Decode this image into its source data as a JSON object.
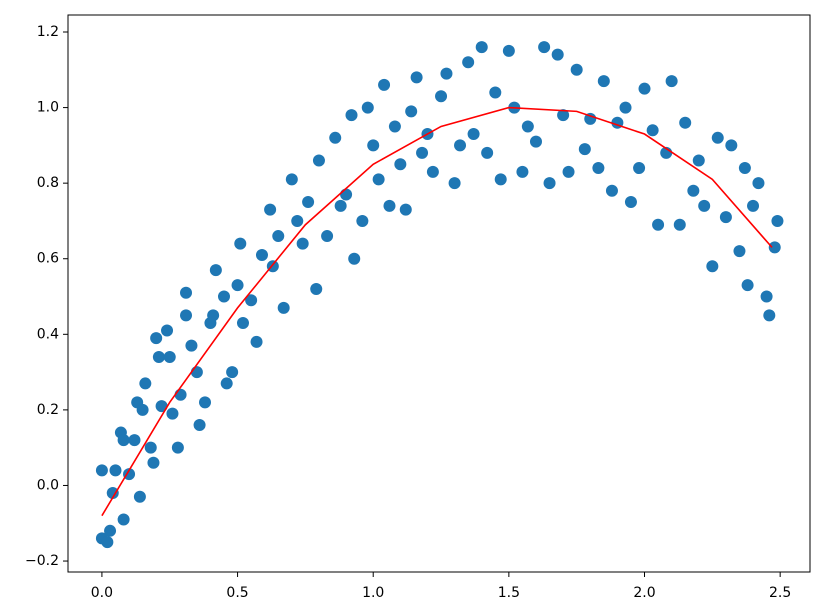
{
  "chart_data": {
    "type": "scatter",
    "xlim": [
      -0.125,
      2.61
    ],
    "ylim": [
      -0.229,
      1.245
    ],
    "xticks": [
      {
        "value": 0,
        "label": "0.0"
      },
      0.5,
      {
        "value": 1,
        "label": "1.0"
      },
      1.5,
      {
        "value": 2,
        "label": "2.0"
      },
      2.5
    ],
    "yticks": [
      {
        "value": -0.2,
        "label": "−0.2"
      },
      {
        "value": 0,
        "label": "0.0"
      },
      0.2,
      0.4,
      0.6,
      0.8,
      {
        "value": 1,
        "label": "1.0"
      },
      1.2
    ],
    "series": [
      {
        "type": "scatter",
        "color": "#1f77b4",
        "x": [
          0.0,
          0.02,
          0.03,
          0.0,
          0.05,
          0.04,
          0.07,
          0.08,
          0.08,
          0.1,
          0.12,
          0.13,
          0.14,
          0.15,
          0.16,
          0.18,
          0.19,
          0.2,
          0.21,
          0.22,
          0.24,
          0.25,
          0.26,
          0.28,
          0.29,
          0.31,
          0.31,
          0.33,
          0.35,
          0.36,
          0.38,
          0.4,
          0.41,
          0.42,
          0.45,
          0.46,
          0.48,
          0.5,
          0.51,
          0.52,
          0.55,
          0.57,
          0.59,
          0.62,
          0.63,
          0.65,
          0.67,
          0.7,
          0.72,
          0.74,
          0.76,
          0.79,
          0.8,
          0.83,
          0.86,
          0.88,
          0.9,
          0.92,
          0.93,
          0.96,
          0.98,
          1.0,
          1.02,
          1.04,
          1.06,
          1.08,
          1.1,
          1.12,
          1.14,
          1.16,
          1.18,
          1.2,
          1.22,
          1.25,
          1.27,
          1.3,
          1.32,
          1.35,
          1.37,
          1.4,
          1.42,
          1.45,
          1.47,
          1.5,
          1.52,
          1.55,
          1.57,
          1.6,
          1.63,
          1.65,
          1.68,
          1.7,
          1.72,
          1.75,
          1.78,
          1.8,
          1.83,
          1.85,
          1.88,
          1.9,
          1.93,
          1.95,
          1.98,
          2.0,
          2.03,
          2.05,
          2.08,
          2.1,
          2.13,
          2.15,
          2.18,
          2.2,
          2.22,
          2.25,
          2.27,
          2.3,
          2.32,
          2.35,
          2.37,
          2.38,
          2.4,
          2.42,
          2.45,
          2.46,
          2.48,
          2.49
        ],
        "values": [
          -0.14,
          -0.15,
          -0.12,
          0.04,
          0.04,
          -0.02,
          0.14,
          0.12,
          -0.09,
          0.03,
          0.12,
          0.22,
          -0.03,
          0.2,
          0.27,
          0.1,
          0.06,
          0.39,
          0.34,
          0.21,
          0.41,
          0.34,
          0.19,
          0.1,
          0.24,
          0.51,
          0.45,
          0.37,
          0.3,
          0.16,
          0.22,
          0.43,
          0.45,
          0.57,
          0.5,
          0.27,
          0.3,
          0.53,
          0.64,
          0.43,
          0.49,
          0.38,
          0.61,
          0.73,
          0.58,
          0.66,
          0.47,
          0.81,
          0.7,
          0.64,
          0.75,
          0.52,
          0.86,
          0.66,
          0.92,
          0.74,
          0.77,
          0.98,
          0.6,
          0.7,
          1.0,
          0.9,
          0.81,
          1.06,
          0.74,
          0.95,
          0.85,
          0.73,
          0.99,
          1.08,
          0.88,
          0.93,
          0.83,
          1.03,
          1.09,
          0.8,
          0.9,
          1.12,
          0.93,
          1.16,
          0.88,
          1.04,
          0.81,
          1.15,
          1.0,
          0.83,
          0.95,
          0.91,
          1.16,
          0.8,
          1.14,
          0.98,
          0.83,
          1.1,
          0.89,
          0.97,
          0.84,
          1.07,
          0.78,
          0.96,
          1.0,
          0.75,
          0.84,
          1.05,
          0.94,
          0.69,
          0.88,
          1.07,
          0.69,
          0.96,
          0.78,
          0.86,
          0.74,
          0.58,
          0.92,
          0.71,
          0.9,
          0.62,
          0.84,
          0.53,
          0.74,
          0.8,
          0.5,
          0.45,
          0.63,
          0.7
        ]
      },
      {
        "type": "line",
        "color": "#ff0000",
        "x": [
          0,
          0.25,
          0.5,
          0.75,
          1.0,
          1.25,
          1.5,
          1.75,
          2.0,
          2.25,
          2.47
        ],
        "values": [
          -0.08,
          0.22,
          0.47,
          0.69,
          0.85,
          0.95,
          1.0,
          0.99,
          0.93,
          0.81,
          0.63
        ]
      }
    ]
  }
}
